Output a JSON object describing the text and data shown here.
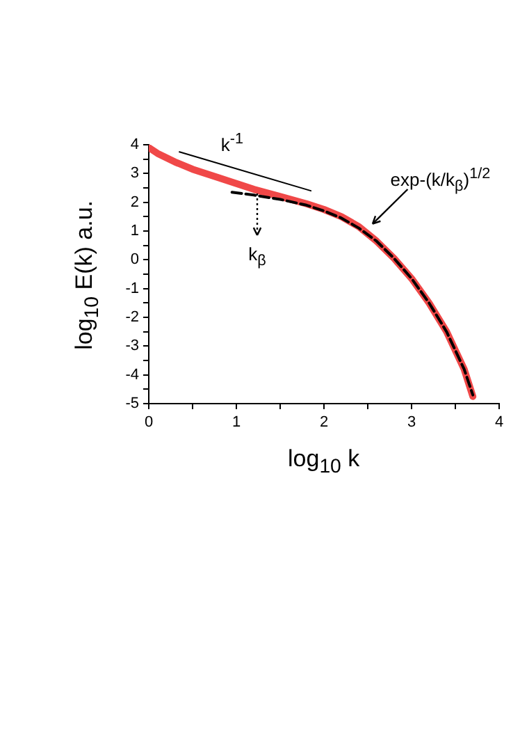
{
  "chart_data": {
    "type": "line",
    "xlabel": "log$_{10}$ k",
    "ylabel": "log$_{10}$ E(k)  a.u.",
    "xlim": [
      0,
      4
    ],
    "ylim": [
      -5,
      4
    ],
    "xticks": [
      0,
      {
        "value": 0.5,
        "label": null
      },
      1,
      {
        "value": 1.5,
        "label": null
      },
      2,
      {
        "value": 2.5,
        "label": null
      },
      3,
      {
        "value": 3.5,
        "label": null
      },
      4
    ],
    "yticks": [
      -5,
      {
        "value": -4.5,
        "label": null
      },
      -4,
      {
        "value": -3.5,
        "label": null
      },
      -3,
      {
        "value": -2.5,
        "label": null
      },
      -2,
      {
        "value": -1.5,
        "label": null
      },
      -1,
      {
        "value": -0.5,
        "label": null
      },
      0,
      {
        "value": 0.5,
        "label": null
      },
      1,
      {
        "value": 1.5,
        "label": null
      },
      2,
      {
        "value": 2.5,
        "label": null
      },
      3,
      {
        "value": 3.5,
        "label": null
      },
      4
    ],
    "grid": false,
    "legend": false,
    "marker": "none",
    "series": [
      {
        "color": "#f04848",
        "line_style": "solid",
        "x": [
          0,
          0.1,
          0.3,
          0.5,
          0.8,
          1.0,
          1.2,
          1.5,
          1.8,
          2.0,
          2.2,
          2.4,
          2.6,
          2.8,
          3.0,
          3.2,
          3.4,
          3.6,
          3.7
        ],
        "values": [
          3.9,
          3.7,
          3.4,
          3.15,
          2.85,
          2.65,
          2.45,
          2.2,
          1.95,
          1.75,
          1.5,
          1.15,
          0.65,
          0.05,
          -0.65,
          -1.5,
          -2.5,
          -3.8,
          -4.75
        ]
      },
      {
        "color": "#000000",
        "line_style": "dashed",
        "x": [
          0.95,
          1.2,
          1.5,
          1.8,
          2.0,
          2.2,
          2.4,
          2.6,
          2.8,
          3.0,
          3.2,
          3.4,
          3.6,
          3.7
        ],
        "values": [
          2.35,
          2.25,
          2.1,
          1.9,
          1.7,
          1.45,
          1.1,
          0.65,
          0.05,
          -0.65,
          -1.5,
          -2.5,
          -3.8,
          -4.7
        ]
      },
      {
        "color": "#000000",
        "line_style": "solid",
        "x": [
          0.35,
          1.85
        ],
        "values": [
          3.75,
          2.4
        ]
      }
    ],
    "annotations": [
      "k$^{-1}$",
      "exp-(k/k$_{β}$)$^{1/2}$",
      "k$_{β}$"
    ]
  }
}
